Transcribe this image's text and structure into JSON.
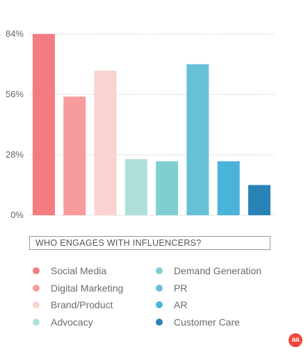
{
  "chart_data": {
    "type": "bar",
    "title": "WHO ENGAGES WITH INFLUENCERS?",
    "categories": [
      "Social Media",
      "Digital Marketing",
      "Brand/Product",
      "Advocacy",
      "Demand Generation",
      "PR",
      "AR",
      "Customer Care"
    ],
    "values": [
      84,
      55,
      67,
      26,
      25,
      70,
      25,
      14
    ],
    "colors": [
      "#f47c80",
      "#f79b9d",
      "#fad3d0",
      "#aee0d9",
      "#7fcfd2",
      "#66c1d7",
      "#49b3da",
      "#2a83b7"
    ],
    "yticks": [
      "0%",
      "28%",
      "56%",
      "84%"
    ],
    "ylim": [
      0,
      84
    ],
    "grid": true,
    "legend_position": "bottom"
  },
  "logo": {
    "text": "aa",
    "color": "#ef4a3f"
  }
}
